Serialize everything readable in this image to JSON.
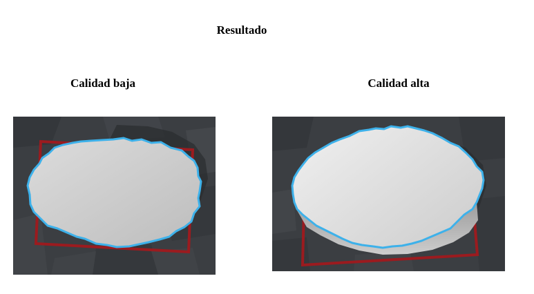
{
  "title": "Resultado",
  "panels": {
    "low": {
      "label": "Calidad baja"
    },
    "high": {
      "label": "Calidad alta"
    }
  },
  "colors": {
    "viewport_bg": "#3a3d41",
    "build_plate_outline": "#9b1b1f",
    "selection_outline": "#3db1ea",
    "model_fill": "#d2d2d2"
  }
}
